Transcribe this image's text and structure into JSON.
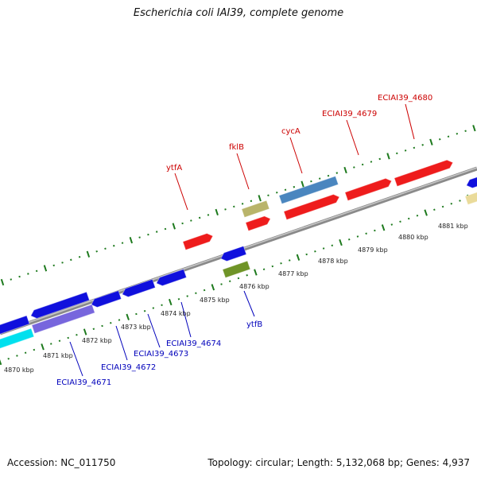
{
  "title": "Escherichia coli IAI39, complete genome",
  "footer": {
    "accession": "Accession: NC_011750",
    "summary": "Topology: circular; Length: 5,132,068 bp; Genes: 4,937"
  },
  "colors": {
    "forward_label": "#cc0000",
    "reverse_label": "#0000bb",
    "backbone": "#8c8c8c",
    "ticks": "#1e7a1e"
  },
  "tick_labels": [
    "4870 kbp",
    "4871 kbp",
    "4872 kbp",
    "4873 kbp",
    "4874 kbp",
    "4875 kbp",
    "4876 kbp",
    "4877 kbp",
    "4878 kbp",
    "4879 kbp",
    "4880 kbp",
    "4881 kbp"
  ],
  "gene_labels": {
    "forward": [
      "ytfA",
      "fklB",
      "cycA",
      "ECIAI39_4679",
      "ECIAI39_4680"
    ],
    "reverse": [
      "ECIAI39_4671",
      "ECIAI39_4672",
      "ECIAI39_4673",
      "ECIAI39_4674",
      "ytfB"
    ]
  }
}
